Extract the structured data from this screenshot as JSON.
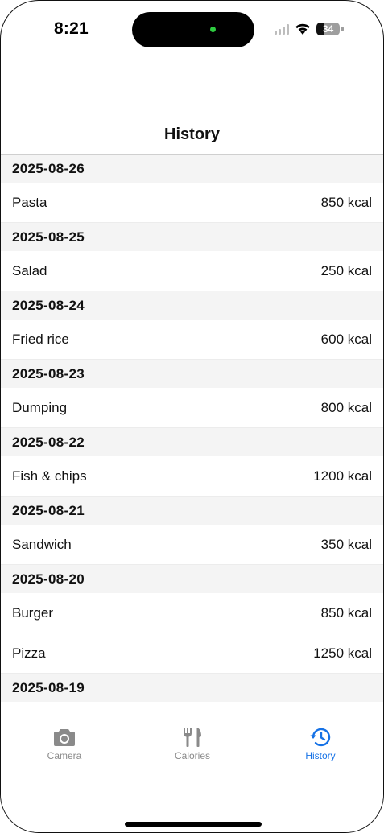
{
  "status_bar": {
    "time": "8:21",
    "battery": "34",
    "battery_level": 0.34
  },
  "header": {
    "title": "History"
  },
  "history": [
    {
      "date": "2025-08-26",
      "meals": [
        {
          "name": "Pasta",
          "calories": "850 kcal"
        }
      ]
    },
    {
      "date": "2025-08-25",
      "meals": [
        {
          "name": "Salad",
          "calories": "250 kcal"
        }
      ]
    },
    {
      "date": "2025-08-24",
      "meals": [
        {
          "name": "Fried rice",
          "calories": "600 kcal"
        }
      ]
    },
    {
      "date": "2025-08-23",
      "meals": [
        {
          "name": "Dumping",
          "calories": "800 kcal"
        }
      ]
    },
    {
      "date": "2025-08-22",
      "meals": [
        {
          "name": "Fish & chips",
          "calories": "1200 kcal"
        }
      ]
    },
    {
      "date": "2025-08-21",
      "meals": [
        {
          "name": "Sandwich",
          "calories": "350 kcal"
        }
      ]
    },
    {
      "date": "2025-08-20",
      "meals": [
        {
          "name": "Burger",
          "calories": "850 kcal"
        },
        {
          "name": "Pizza",
          "calories": "1250 kcal"
        }
      ]
    },
    {
      "date": "2025-08-19",
      "meals": []
    }
  ],
  "tab_bar": {
    "tabs": [
      {
        "label": "Camera",
        "icon": "camera-icon",
        "active": false
      },
      {
        "label": "Calories",
        "icon": "fork-knife-icon",
        "active": false
      },
      {
        "label": "History",
        "icon": "clock-history-icon",
        "active": true
      }
    ]
  },
  "colors": {
    "accent": "#1672e6",
    "inactive": "#8a8a8a",
    "section_bg": "#f4f4f4"
  }
}
